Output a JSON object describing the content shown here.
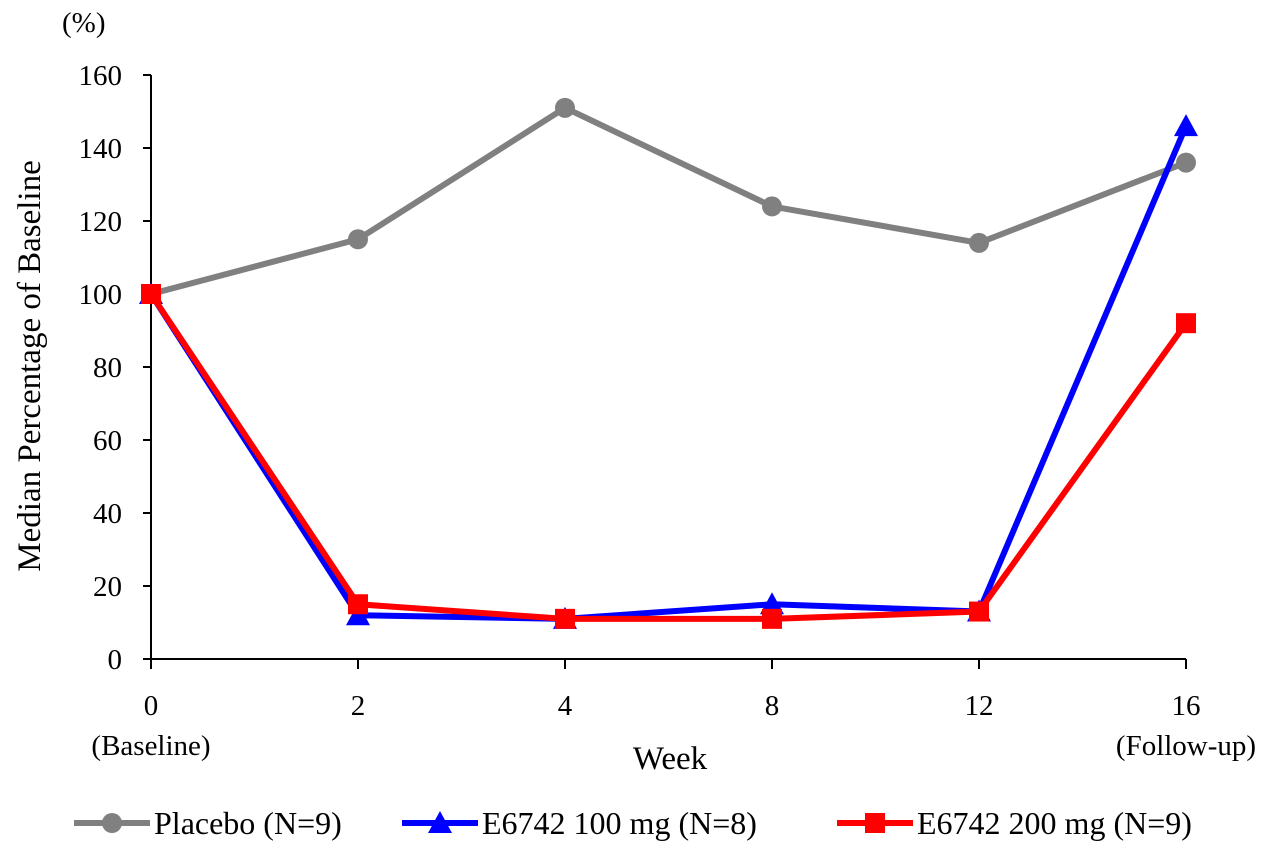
{
  "chart_data": {
    "type": "line",
    "unit_label": "(%)",
    "ylabel": "Median Percentage of Baseline",
    "xlabel": "Week",
    "ylim": [
      0,
      160
    ],
    "y_ticks": [
      0,
      20,
      40,
      60,
      80,
      100,
      120,
      140,
      160
    ],
    "categories": [
      "0",
      "2",
      "4",
      "8",
      "12",
      "16"
    ],
    "category_sublabels": [
      "(Baseline)",
      "",
      "",
      "",
      "",
      "(Follow-up)"
    ],
    "series": [
      {
        "name": "Placebo (N=9)",
        "color": "#808080",
        "marker": "circle",
        "values": [
          100,
          115,
          151,
          124,
          114,
          136
        ]
      },
      {
        "name": "E6742 100 mg (N=8)",
        "color": "#0000ff",
        "marker": "triangle",
        "values": [
          100,
          12,
          11,
          15,
          13,
          146
        ]
      },
      {
        "name": "E6742 200 mg (N=9)",
        "color": "#ff0000",
        "marker": "square",
        "values": [
          100,
          15,
          11,
          11,
          13,
          92
        ]
      }
    ],
    "grid": false,
    "legend_position": "bottom"
  }
}
